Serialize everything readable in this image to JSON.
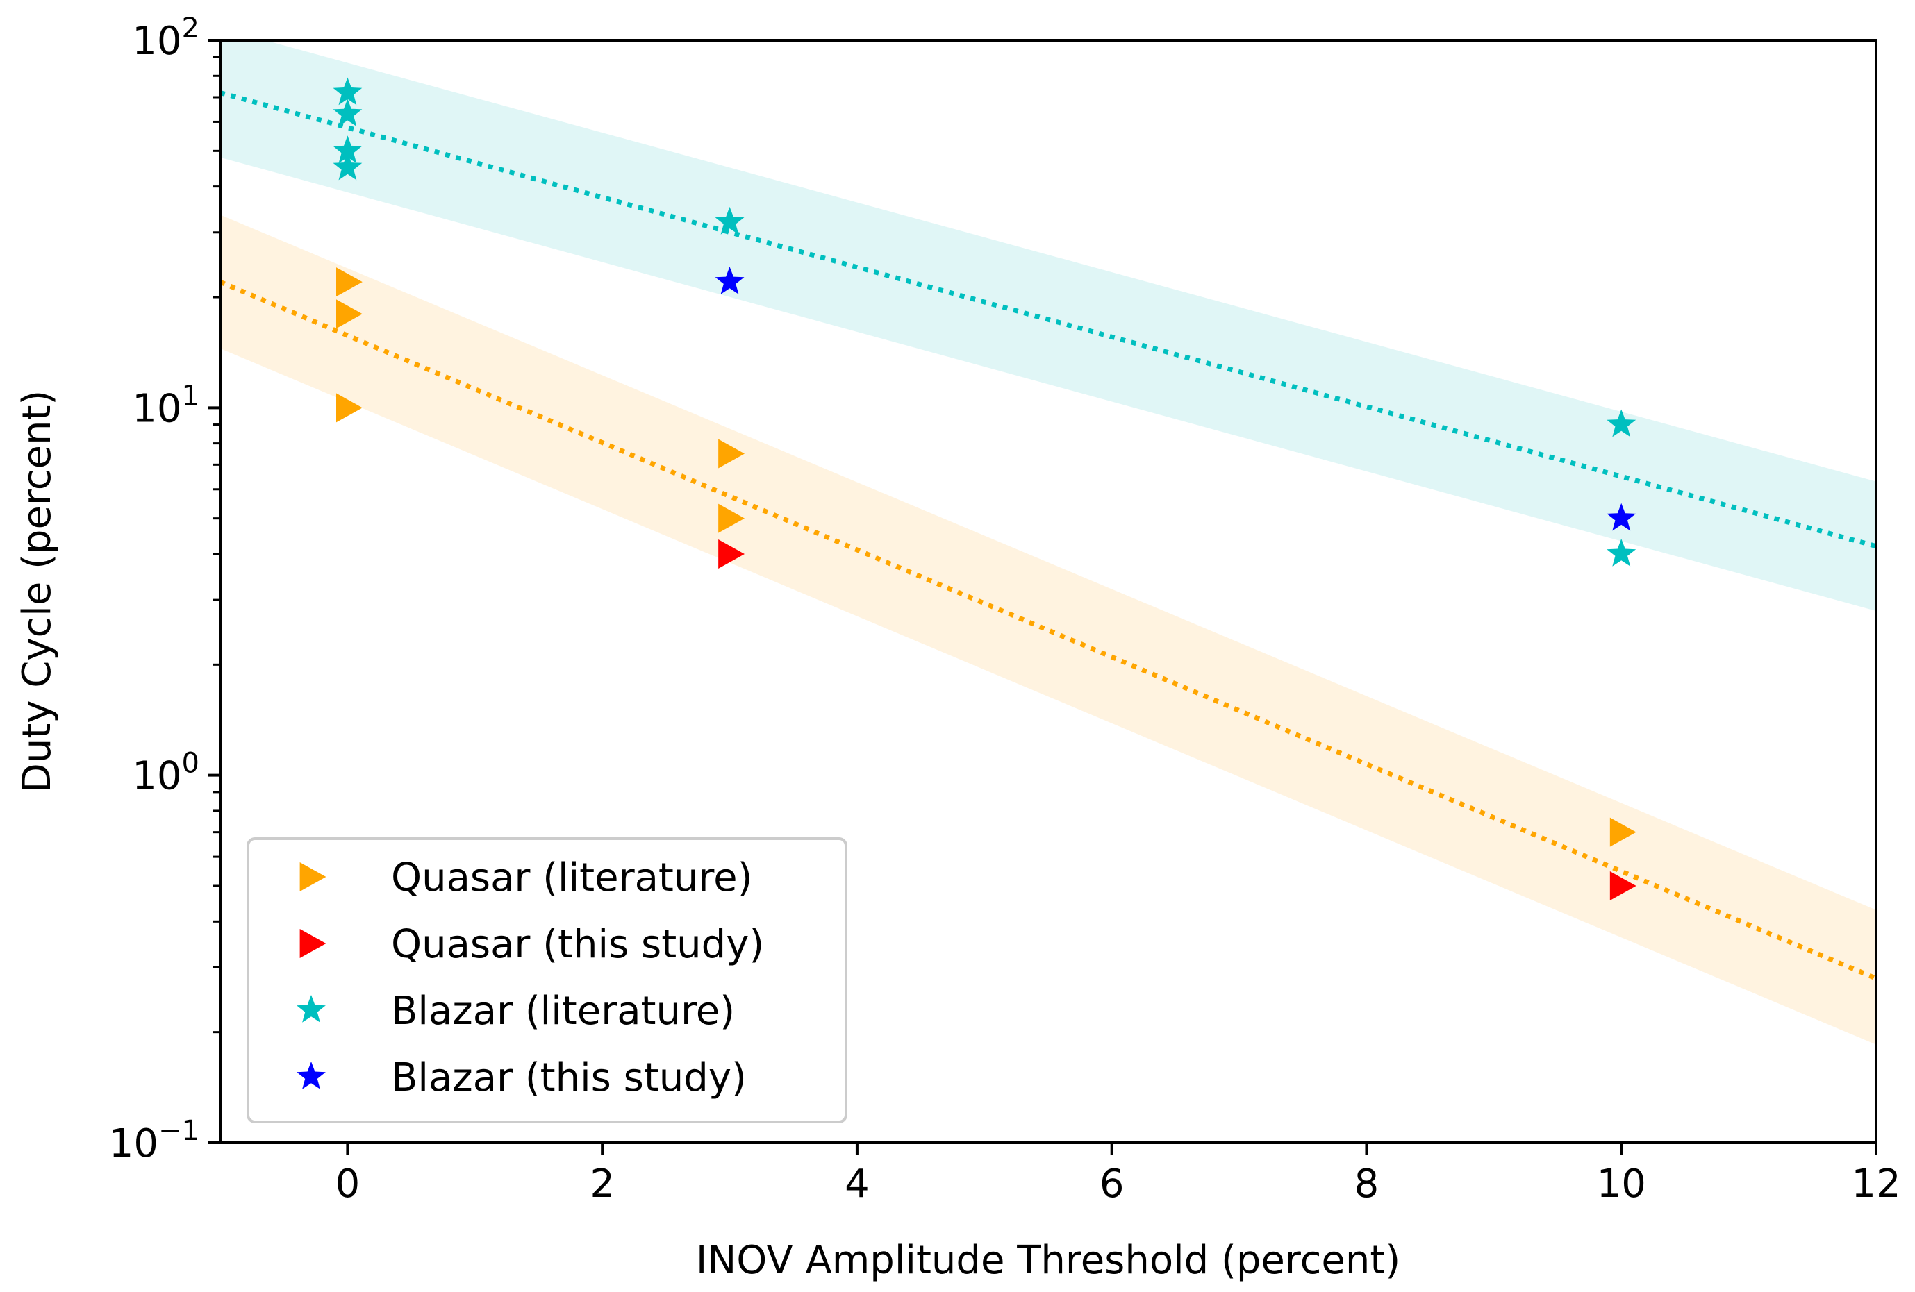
{
  "chart_data": {
    "type": "scatter",
    "title": "",
    "xlabel": "INOV Amplitude Threshold (percent)",
    "ylabel": "Duty Cycle (percent)",
    "xlim": [
      -1,
      12
    ],
    "ylim": [
      0.1,
      100
    ],
    "yscale": "log",
    "x_ticks": [
      0,
      2,
      4,
      6,
      8,
      10,
      12
    ],
    "x_tick_labels": [
      "0",
      "2",
      "4",
      "6",
      "8",
      "10",
      "12"
    ],
    "y_ticks": [
      0.1,
      1,
      10,
      100
    ],
    "y_tick_labels": [
      {
        "base": "10",
        "exp": "−1"
      },
      {
        "base": "10",
        "exp": "0"
      },
      {
        "base": "10",
        "exp": "1"
      },
      {
        "base": "10",
        "exp": "2"
      }
    ],
    "grid": false,
    "legend_position": "lower-left",
    "series": [
      {
        "name": "Quasar (literature)",
        "marker": "triangle-right",
        "color": "#ffa500",
        "x": [
          0,
          0,
          0,
          3,
          3,
          10
        ],
        "y": [
          22,
          18,
          10,
          7.5,
          5,
          0.7
        ]
      },
      {
        "name": "Quasar (this study)",
        "marker": "triangle-right",
        "color": "#ff0000",
        "x": [
          3,
          10
        ],
        "y": [
          4,
          0.5
        ]
      },
      {
        "name": "Blazar (literature)",
        "marker": "star",
        "color": "#00bfbf",
        "x": [
          0,
          0,
          0,
          0,
          3,
          10,
          10
        ],
        "y": [
          72,
          63,
          50,
          45,
          32,
          9,
          4
        ]
      },
      {
        "name": "Blazar (this study)",
        "marker": "star",
        "color": "#0000ff",
        "x": [
          3,
          10
        ],
        "y": [
          22,
          5
        ]
      }
    ],
    "fits": [
      {
        "name": "blazar-fit",
        "color": "#00bfbf",
        "band_color": "#e0f6f6",
        "x": [
          -1,
          12
        ],
        "y": [
          72,
          4.2
        ],
        "band_lower": [
          48,
          2.8
        ],
        "band_upper": [
          108,
          6.3
        ]
      },
      {
        "name": "quasar-fit",
        "color": "#ffa500",
        "band_color": "#fff3e0",
        "x": [
          -1,
          12
        ],
        "y": [
          22,
          0.28
        ],
        "band_lower": [
          14.5,
          0.185
        ],
        "band_upper": [
          33.5,
          0.43
        ]
      }
    ]
  }
}
